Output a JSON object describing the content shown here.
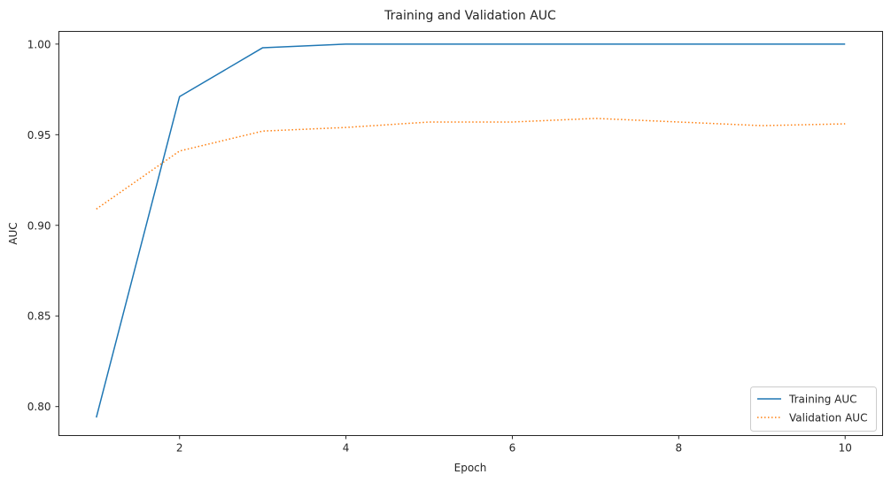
{
  "chart_data": {
    "type": "line",
    "title": "Training and Validation AUC",
    "xlabel": "Epoch",
    "ylabel": "AUC",
    "xlim": [
      0.55,
      10.45
    ],
    "ylim": [
      0.784,
      1.007
    ],
    "x": [
      1,
      2,
      3,
      4,
      5,
      6,
      7,
      8,
      9,
      10
    ],
    "xticks": [
      2,
      4,
      6,
      8,
      10
    ],
    "xtick_labels": [
      "2",
      "4",
      "6",
      "8",
      "10"
    ],
    "yticks": [
      0.8,
      0.85,
      0.9,
      0.95,
      1.0
    ],
    "ytick_labels": [
      "0.80",
      "0.85",
      "0.90",
      "0.95",
      "1.00"
    ],
    "grid": false,
    "legend_position": "bottom-right",
    "series": [
      {
        "name": "Training AUC",
        "color": "#1f77b4",
        "linestyle": "solid",
        "values": [
          0.794,
          0.971,
          0.998,
          1.0,
          1.0,
          1.0,
          1.0,
          1.0,
          1.0,
          1.0
        ]
      },
      {
        "name": "Validation AUC",
        "color": "#ff7f0e",
        "linestyle": "dotted",
        "values": [
          0.909,
          0.941,
          0.952,
          0.954,
          0.957,
          0.957,
          0.959,
          0.957,
          0.955,
          0.956
        ]
      }
    ]
  }
}
